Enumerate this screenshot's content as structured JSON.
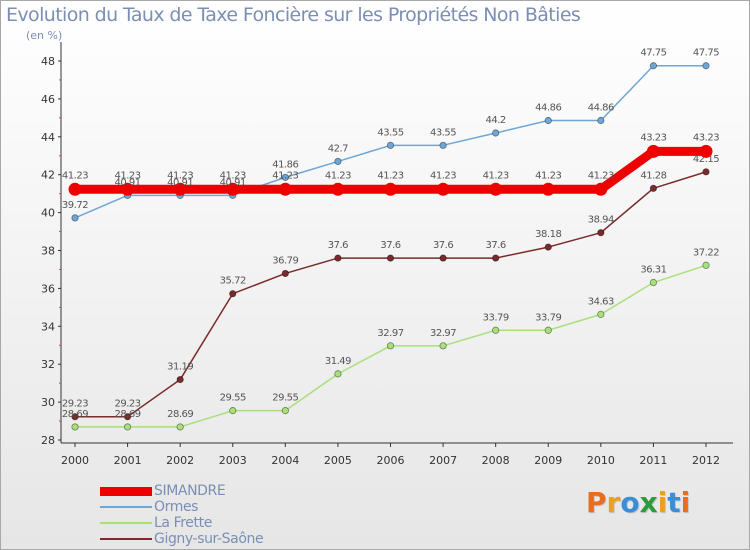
{
  "title": "Evolution du Taux de Taxe Foncière sur les Propriétés Non Bâties",
  "unit_label": "(en %)",
  "logo": {
    "letters": [
      "P",
      "r",
      "o",
      "x",
      "i",
      "t",
      "i"
    ],
    "colors": [
      "#e86d1f",
      "#e8a21f",
      "#3b8ed6",
      "#2e9b3a",
      "#e8a21f",
      "#3b8ed6",
      "#e86d1f"
    ]
  },
  "chart_data": {
    "type": "line",
    "x": [
      "2000",
      "2001",
      "2002",
      "2003",
      "2004",
      "2005",
      "2006",
      "2007",
      "2008",
      "2009",
      "2010",
      "2011",
      "2012"
    ],
    "ylim": [
      28,
      48
    ],
    "yticks": [
      "28",
      "30",
      "32",
      "34",
      "36",
      "38",
      "40",
      "42",
      "44",
      "46",
      "48"
    ],
    "grid": "none",
    "legend_position": "bottom-left",
    "series": [
      {
        "name": "SIMANDRE",
        "color": "#ee0000",
        "values": [
          41.23,
          41.23,
          41.23,
          41.23,
          41.23,
          41.23,
          41.23,
          41.23,
          41.23,
          41.23,
          41.23,
          43.23,
          43.23
        ],
        "labels": [
          "41.23",
          "41.23",
          "41.23",
          "41.23",
          "41.23",
          "41.23",
          "41.23",
          "41.23",
          "41.23",
          "41.23",
          "41.23",
          "43.23",
          "43.23"
        ]
      },
      {
        "name": "Ormes",
        "color": "#6ea6d6",
        "values": [
          39.72,
          40.91,
          40.91,
          40.91,
          41.86,
          42.7,
          43.55,
          43.55,
          44.2,
          44.86,
          44.86,
          47.75,
          47.75
        ],
        "labels": [
          "39.72",
          "40.91",
          "40.91",
          "40.91",
          "41.86",
          "42.7",
          "43.55",
          "43.55",
          "44.2",
          "44.86",
          "44.86",
          "47.75",
          "47.75"
        ]
      },
      {
        "name": "La Frette",
        "color": "#a8e07a",
        "values": [
          28.69,
          28.69,
          28.69,
          29.55,
          29.55,
          31.49,
          32.97,
          32.97,
          33.79,
          33.79,
          34.63,
          36.31,
          37.22
        ],
        "labels": [
          "28.69",
          "28.69",
          "28.69",
          "29.55",
          "29.55",
          "31.49",
          "32.97",
          "32.97",
          "33.79",
          "33.79",
          "34.63",
          "36.31",
          "37.22"
        ]
      },
      {
        "name": "Gigny-sur-Saône",
        "color": "#7a2a2a",
        "values": [
          29.23,
          29.23,
          31.19,
          35.72,
          36.79,
          37.6,
          37.6,
          37.6,
          37.6,
          38.18,
          38.94,
          41.28,
          42.15
        ],
        "labels": [
          "29.23",
          "29.23",
          "31.19",
          "35.72",
          "36.79",
          "37.6",
          "37.6",
          "37.6",
          "37.6",
          "38.18",
          "38.94",
          "41.28",
          "42.15"
        ]
      }
    ]
  }
}
